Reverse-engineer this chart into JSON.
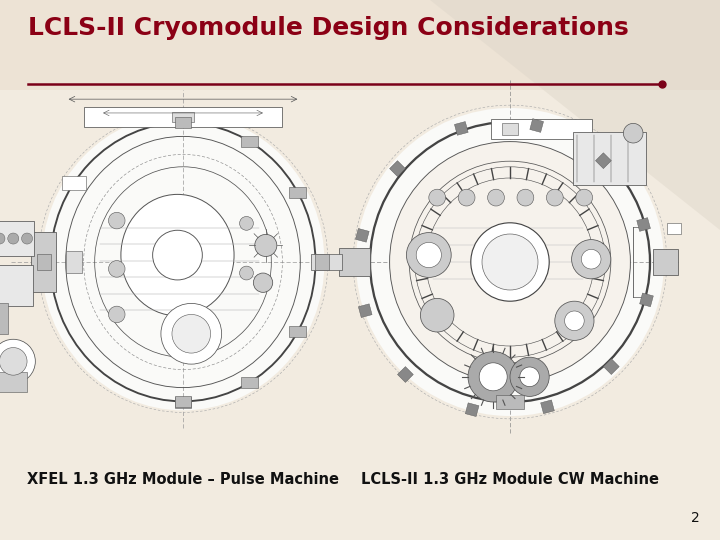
{
  "title": "LCLS-II Cryomodule Design Considerations",
  "title_color": "#8B0015",
  "title_fontsize": 18,
  "bg_color": "#F2EBE0",
  "line_color": "#7A0018",
  "label_left": "XFEL 1.3 GHz Module – Pulse Machine",
  "label_right": "LCLS-II 1.3 GHz Module CW Machine",
  "label_fontsize": 10.5,
  "label_color": "#111111",
  "page_number": "2",
  "page_number_fontsize": 10,
  "draw_color": "#555555",
  "bg_top_color": "#EDE3D4",
  "bg_mid_color": "#F2EBE0"
}
